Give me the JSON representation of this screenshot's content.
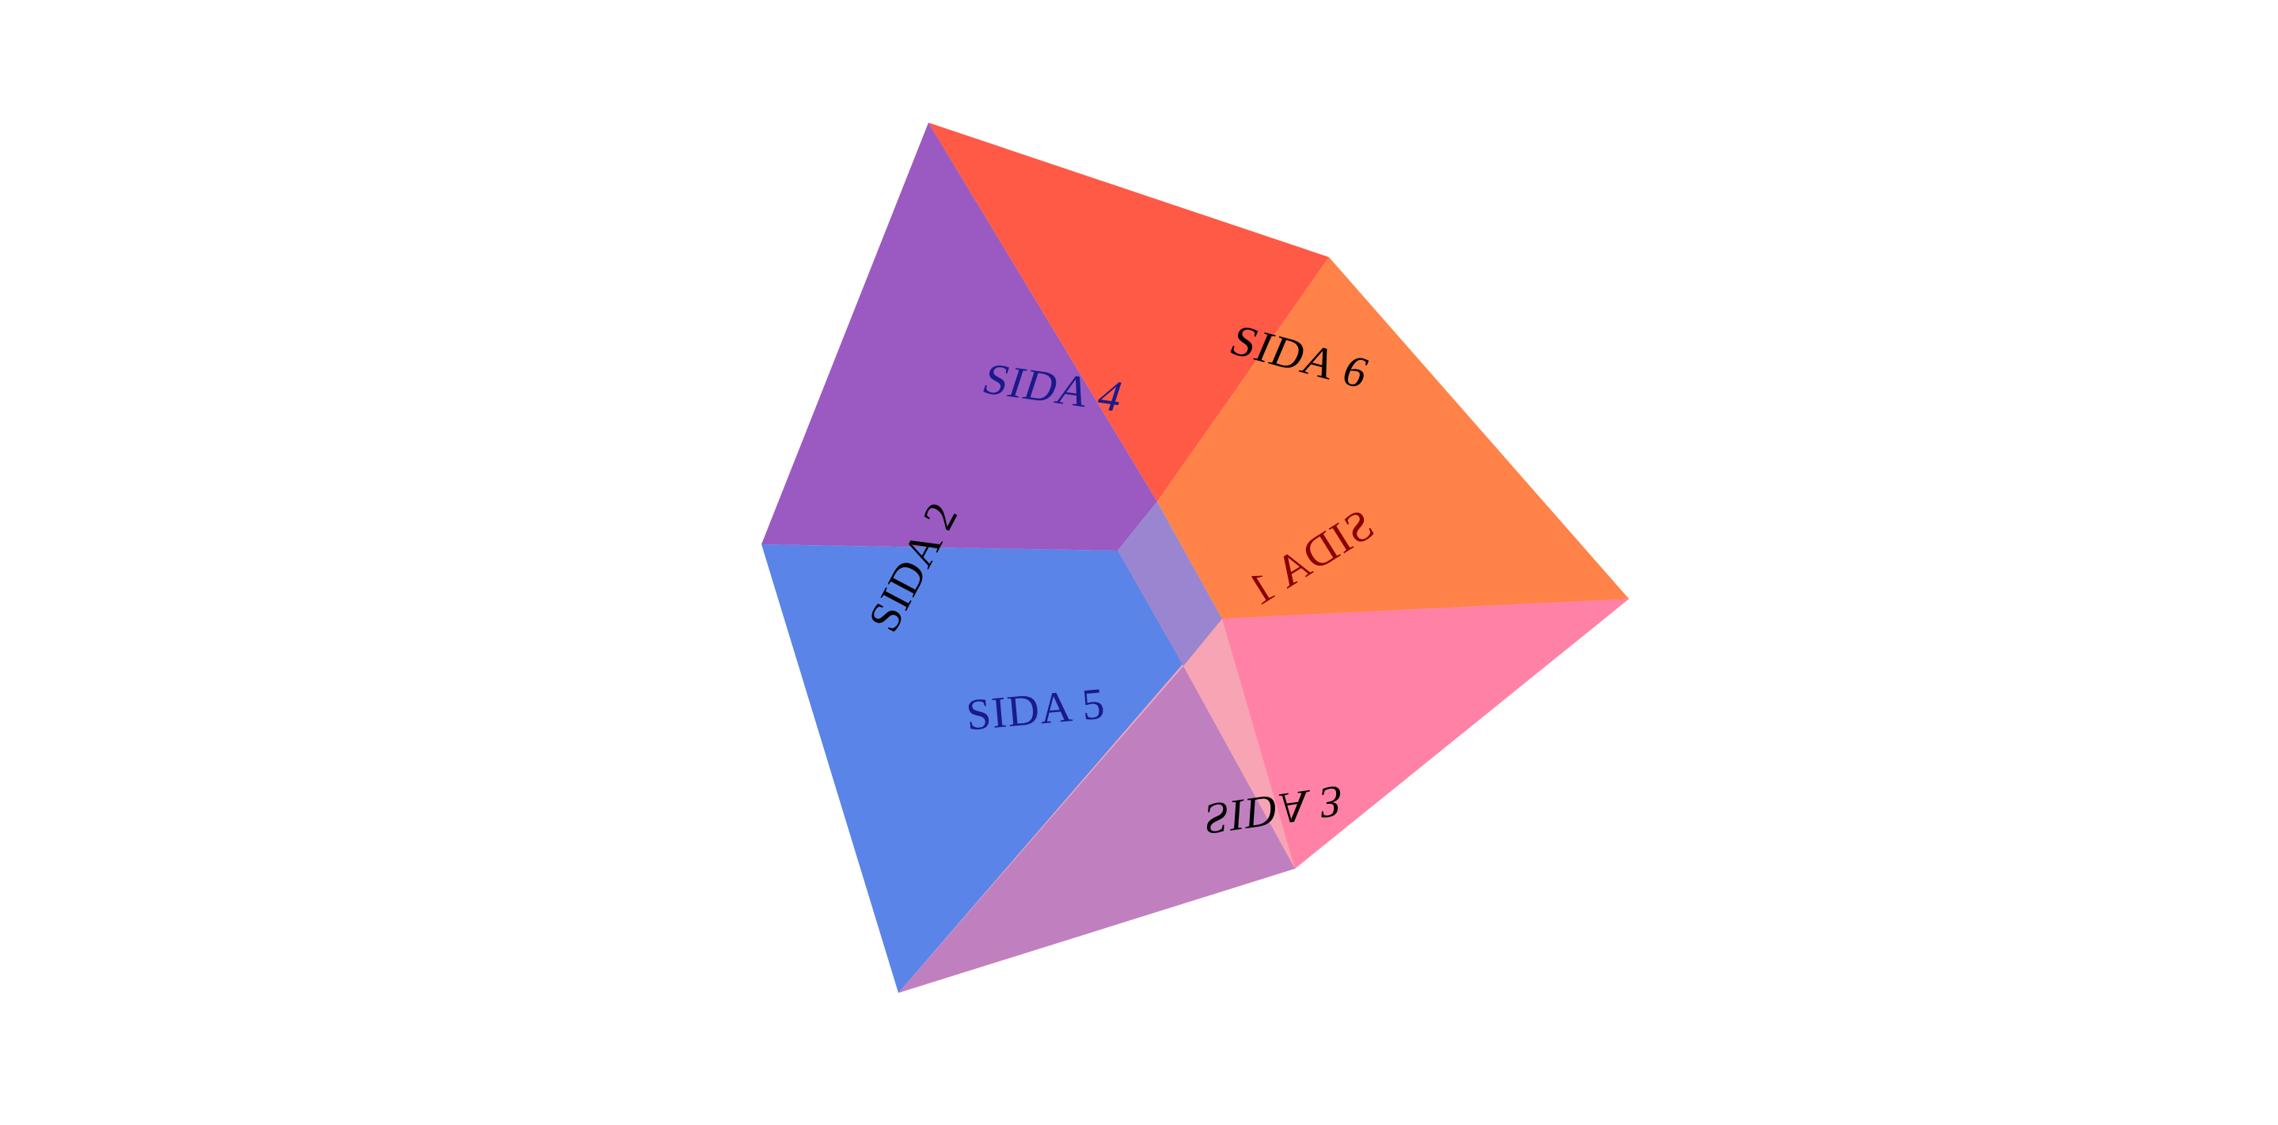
{
  "faces": [
    {
      "id": "back",
      "label": "SIDA 3",
      "color": "#f05a78"
    },
    {
      "id": "bottom",
      "label": "SIDA 5",
      "color": "#5a84e8"
    },
    {
      "id": "left",
      "label": "SIDA 2",
      "color": "#9a5ac2"
    },
    {
      "id": "top",
      "label": "SIDA 6",
      "color": "#ff5a46"
    },
    {
      "id": "right",
      "label": "SIDA 1",
      "color": "#ff8248"
    },
    {
      "id": "front",
      "label": "SIDA 4",
      "color": "#ff82a6"
    }
  ],
  "label_colors": {
    "dark": "#000000",
    "blue": "#1a1a8c",
    "red": "#8b0000"
  }
}
